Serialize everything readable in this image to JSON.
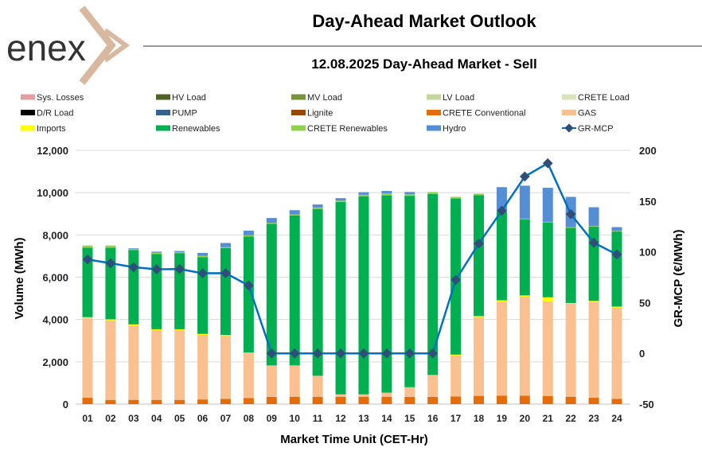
{
  "header": {
    "logo_text": "enex",
    "title": "Day-Ahead Market Outlook",
    "subtitle": "12.08.2025  Day-Ahead Market - Sell"
  },
  "colors": {
    "Sys. Losses": "#e0a0a0",
    "HV Load": "#4f6228",
    "MV Load": "#77933c",
    "LV Load": "#c4d79b",
    "CRETE Load": "#d8e4bc",
    "D/R Load": "#000000",
    "PUMP": "#366092",
    "Lignite": "#974706",
    "CRETE Conventional": "#e46c0a",
    "GAS": "#fac090",
    "Imports": "#ffff00",
    "Renewables": "#00b050",
    "CRETE Renewables": "#92d050",
    "Hydro": "#558ed5",
    "GR-MCP": "#0070c0",
    "GR-MCP-marker": "#2f4f7a",
    "logo_chevron": "#d9b8a0",
    "logo_text": "#333333"
  },
  "chart_data": {
    "type": "bar",
    "stacked": true,
    "title": "12.08.2025  Day-Ahead Market - Sell",
    "xlabel": "Market Time Unit (CET-Hr)",
    "ylabel": "Volume (MWh)",
    "y2label": "GR-MCP (€/MWh)",
    "ylim": [
      0,
      12000
    ],
    "y2lim": [
      -50,
      200
    ],
    "yticks": [
      "0",
      "2,000",
      "4,000",
      "6,000",
      "8,000",
      "10,000",
      "12,000"
    ],
    "y2ticks": [
      "-50",
      "0",
      "50",
      "100",
      "150",
      "200"
    ],
    "grid": true,
    "legend_position": "top",
    "legend": [
      "Sys. Losses",
      "HV Load",
      "MV Load",
      "LV Load",
      "CRETE Load",
      "D/R Load",
      "PUMP",
      "Lignite",
      "CRETE Conventional",
      "GAS",
      "Imports",
      "Renewables",
      "CRETE Renewables",
      "Hydro",
      "GR-MCP"
    ],
    "categories": [
      "01",
      "02",
      "03",
      "04",
      "05",
      "06",
      "07",
      "08",
      "09",
      "10",
      "11",
      "12",
      "13",
      "14",
      "15",
      "16",
      "17",
      "18",
      "19",
      "20",
      "21",
      "22",
      "23",
      "24"
    ],
    "series": [
      {
        "name": "CRETE Conventional",
        "values": [
          300,
          200,
          200,
          200,
          200,
          220,
          250,
          290,
          340,
          350,
          340,
          350,
          350,
          350,
          340,
          340,
          360,
          390,
          400,
          400,
          380,
          350,
          300,
          250
        ]
      },
      {
        "name": "GAS",
        "values": [
          3760,
          3760,
          3520,
          3300,
          3300,
          3050,
          2970,
          2150,
          1490,
          1480,
          1000,
          110,
          110,
          190,
          460,
          1040,
          1940,
          3720,
          4440,
          4680,
          4480,
          4390,
          4540,
          4310
        ]
      },
      {
        "name": "Imports",
        "values": [
          50,
          50,
          50,
          40,
          40,
          50,
          50,
          0,
          0,
          0,
          0,
          0,
          0,
          0,
          0,
          0,
          40,
          50,
          70,
          60,
          190,
          40,
          40,
          50
        ]
      },
      {
        "name": "Renewables",
        "values": [
          3290,
          3380,
          3520,
          3560,
          3600,
          3620,
          4110,
          5490,
          6700,
          7090,
          7890,
          9100,
          9370,
          9330,
          9050,
          8560,
          7380,
          5720,
          4190,
          3600,
          3540,
          3550,
          3510,
          3550
        ]
      },
      {
        "name": "CRETE Renewables",
        "values": [
          100,
          110,
          50,
          60,
          50,
          70,
          40,
          50,
          40,
          50,
          70,
          60,
          70,
          90,
          70,
          90,
          80,
          70,
          30,
          30,
          30,
          30,
          30,
          30
        ]
      },
      {
        "name": "Hydro",
        "values": [
          0,
          0,
          30,
          50,
          50,
          140,
          200,
          220,
          230,
          200,
          140,
          120,
          120,
          120,
          110,
          0,
          0,
          0,
          1130,
          1560,
          1610,
          1440,
          890,
          180
        ]
      }
    ],
    "line": {
      "name": "GR-MCP",
      "axis": "right",
      "values": [
        92.5,
        88.8,
        84.9,
        82.8,
        83.0,
        78.9,
        79.0,
        66.9,
        0,
        0,
        0,
        0,
        0,
        0,
        0,
        0,
        72.4,
        108.2,
        140.5,
        174.2,
        187.3,
        137.1,
        109.0,
        97.4
      ]
    }
  }
}
